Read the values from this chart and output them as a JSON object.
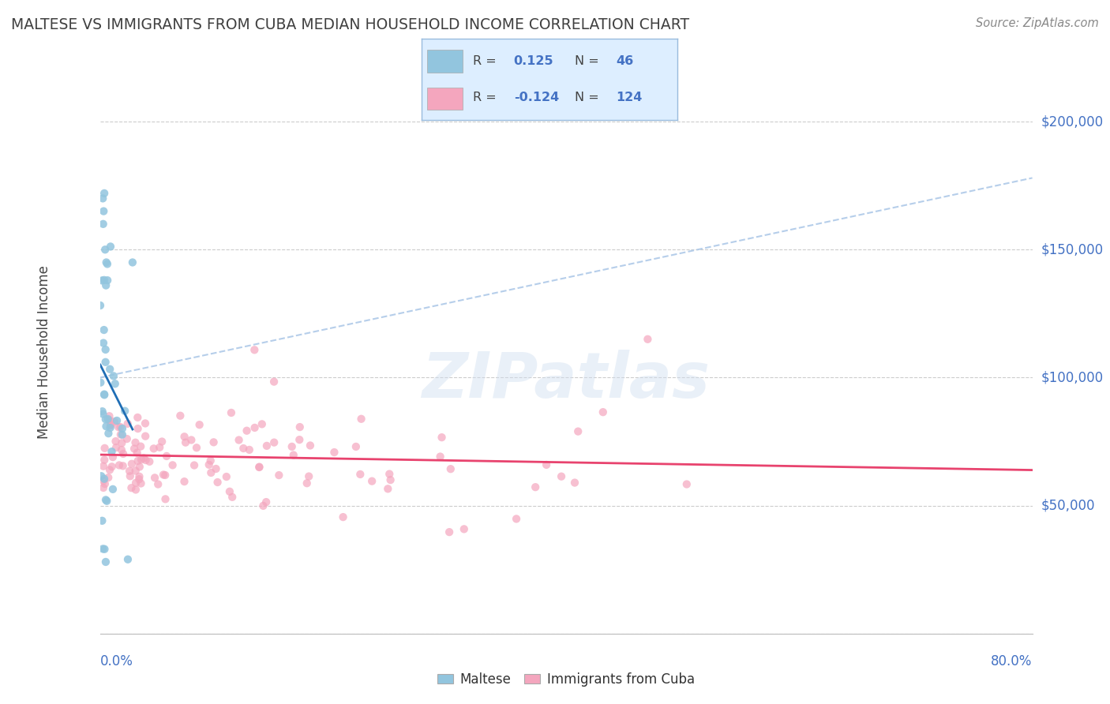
{
  "title": "MALTESE VS IMMIGRANTS FROM CUBA MEDIAN HOUSEHOLD INCOME CORRELATION CHART",
  "source": "Source: ZipAtlas.com",
  "ylabel": "Median Household Income",
  "xlim": [
    0.0,
    80.0
  ],
  "ylim": [
    0,
    220000
  ],
  "ytick_vals": [
    0,
    50000,
    100000,
    150000,
    200000
  ],
  "maltese_R": 0.125,
  "maltese_N": 46,
  "cuba_R": -0.124,
  "cuba_N": 124,
  "maltese_color": "#92c5de",
  "cuba_color": "#f4a6be",
  "maltese_line_color": "#1f6eb5",
  "cuba_line_color": "#e8436e",
  "dashed_line_color": "#aec9e8",
  "axis_color": "#4472c4",
  "title_color": "#404040",
  "grid_color": "#cccccc",
  "legend_bg": "#ddeeff",
  "legend_border": "#99bbdd",
  "watermark_color": "#d0dff0",
  "source_color": "#888888",
  "ylabel_color": "#444444",
  "bottom_label_color": "#444444",
  "maltese_seed": 7,
  "cuba_seed": 13
}
